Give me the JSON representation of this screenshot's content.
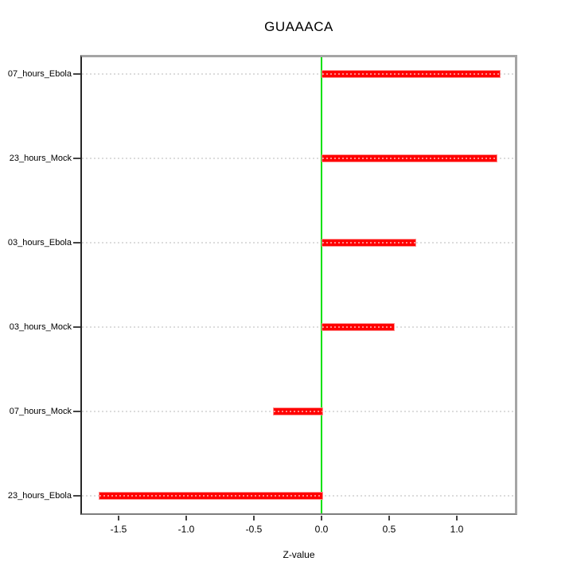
{
  "chart_data": {
    "type": "bar",
    "orientation": "horizontal",
    "title": "GUAAACA",
    "xlabel": "Z-value",
    "ylabel": "",
    "categories": [
      "07_hours_Ebola",
      "23_hours_Mock",
      "03_hours_Ebola",
      "03_hours_Mock",
      "07_hours_Mock",
      "23_hours_Ebola"
    ],
    "values": [
      1.31,
      1.29,
      0.69,
      0.53,
      -0.36,
      -1.65
    ],
    "xlim": [
      -1.77,
      1.43
    ],
    "xticks": [
      -1.5,
      -1.0,
      -0.5,
      0.0,
      0.5,
      1.0
    ],
    "xtick_labels": [
      "-1.5",
      "-1.0",
      "-0.5",
      "0.0",
      "0.5",
      "1.0"
    ],
    "grid": true,
    "grid_style": "dotted",
    "zero_line": true,
    "legend": false
  },
  "colors": {
    "bar_fill": "#ff0000",
    "bar_edge": "#ff8f8f",
    "zero_line": "#00e100",
    "grid": "#dcdcdc",
    "axis_dark": "#262626",
    "axis_gray": "#a5a5a5",
    "text": "#000000",
    "background": "#ffffff"
  }
}
